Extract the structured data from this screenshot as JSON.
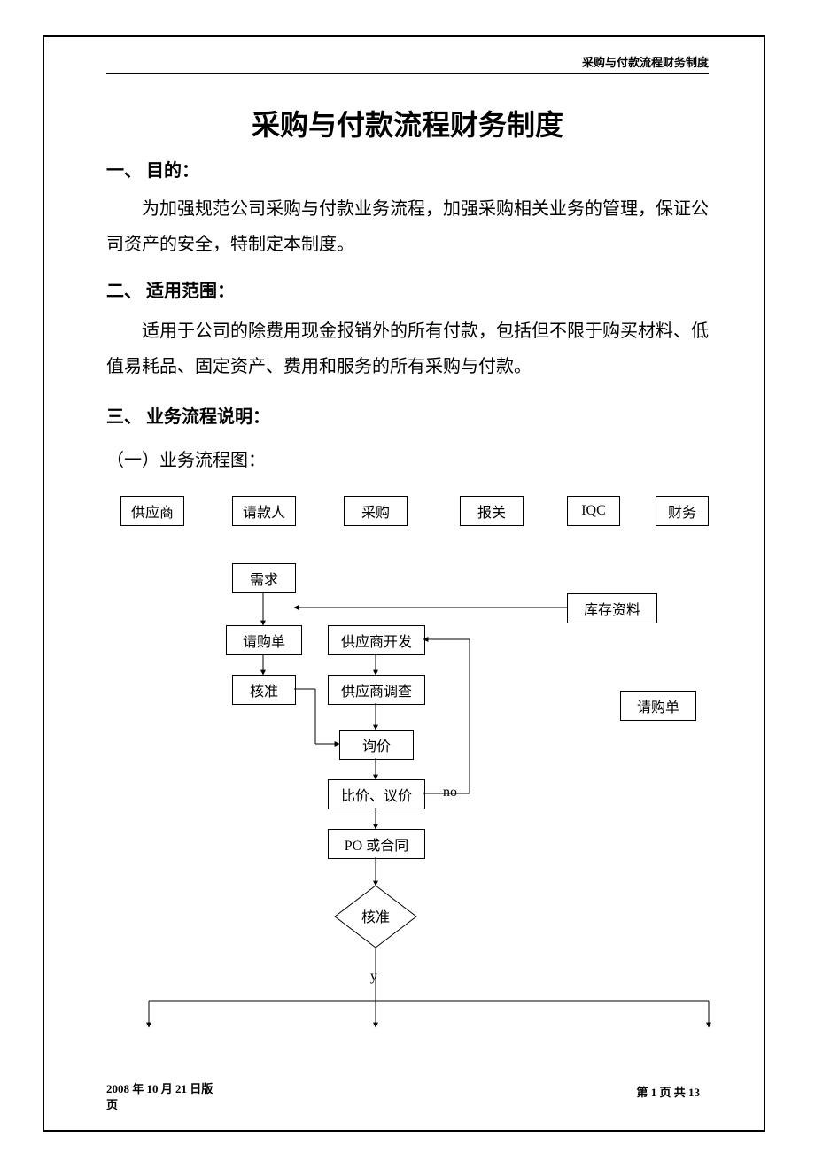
{
  "page": {
    "running_head": "采购与付款流程财务制度",
    "title": "采购与付款流程财务制度",
    "footer_left": "2008 年 10 月 21 日版\n页",
    "footer_right": "第 1 页 共 13"
  },
  "sections": {
    "s1_head": "一、 目的：",
    "s1_body": "为加强规范公司采购与付款业务流程，加强采购相关业务的管理，保证公司资产的安全，特制定本制度。",
    "s2_head": "二、 适用范围：",
    "s2_body": "适用于公司的除费用现金报销外的所有付款，包括但不限于购买材料、低值易耗品、固定资产、费用和服务的所有采购与付款。",
    "s3_head": "三、 业务流程说明：",
    "s3_sub": "（一）业务流程图："
  },
  "flow": {
    "headers": [
      "供应商",
      "请款人",
      "采购",
      "报关",
      "IQC",
      "财务"
    ],
    "nodes": {
      "need": "需求",
      "req": "请购单",
      "approve1": "核准",
      "supdev": "供应商开发",
      "supinv": "供应商调查",
      "inquiry": "询价",
      "compare": "比价、议价",
      "po": "PO 或合同",
      "approve2": "核准",
      "inventory": "库存资料",
      "req2": "请购单"
    },
    "labels": {
      "no": "no",
      "y": "y"
    },
    "style": {
      "border_color": "#000000",
      "bg_color": "#ffffff",
      "header_box": {
        "w": 70,
        "h": 32,
        "fontsize": 16
      },
      "node_box": {
        "fontsize": 16
      },
      "line_width": 1
    }
  }
}
